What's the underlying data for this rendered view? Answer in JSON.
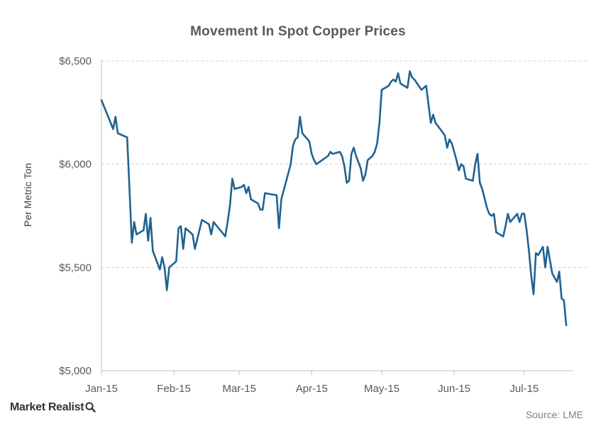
{
  "chart_data": {
    "type": "line",
    "title": "Movement In Spot Copper Prices",
    "ylabel": "Per Metric Ton",
    "xlabel": "",
    "ylim": [
      5000,
      6500
    ],
    "yticks": [
      5000,
      5500,
      6000,
      6500
    ],
    "ytick_labels": [
      "$5,000",
      "$5,500",
      "$6,000",
      "$6,500"
    ],
    "xticks": [
      "2015-01-01",
      "2015-02-01",
      "2015-03-01",
      "2015-04-01",
      "2015-05-01",
      "2015-06-01",
      "2015-07-01"
    ],
    "xtick_labels": [
      "Jan-15",
      "Feb-15",
      "Mar-15",
      "Apr-15",
      "May-15",
      "Jun-15",
      "Jul-15"
    ],
    "xlim": [
      "2015-01-01",
      "2015-07-22"
    ],
    "grid": "horizontal dashed",
    "line_color": "#1f6391",
    "series": [
      {
        "name": "",
        "points": [
          [
            "2015-01-01",
            6310
          ],
          [
            "2015-01-06",
            6170
          ],
          [
            "2015-01-07",
            6230
          ],
          [
            "2015-01-08",
            6150
          ],
          [
            "2015-01-12",
            6130
          ],
          [
            "2015-01-13",
            5880
          ],
          [
            "2015-01-14",
            5620
          ],
          [
            "2015-01-15",
            5720
          ],
          [
            "2015-01-16",
            5660
          ],
          [
            "2015-01-19",
            5680
          ],
          [
            "2015-01-20",
            5760
          ],
          [
            "2015-01-21",
            5630
          ],
          [
            "2015-01-22",
            5740
          ],
          [
            "2015-01-23",
            5580
          ],
          [
            "2015-01-26",
            5490
          ],
          [
            "2015-01-27",
            5550
          ],
          [
            "2015-01-28",
            5500
          ],
          [
            "2015-01-29",
            5390
          ],
          [
            "2015-01-30",
            5500
          ],
          [
            "2015-02-02",
            5530
          ],
          [
            "2015-02-03",
            5690
          ],
          [
            "2015-02-04",
            5700
          ],
          [
            "2015-02-05",
            5590
          ],
          [
            "2015-02-06",
            5690
          ],
          [
            "2015-02-09",
            5660
          ],
          [
            "2015-02-10",
            5590
          ],
          [
            "2015-02-13",
            5730
          ],
          [
            "2015-02-16",
            5710
          ],
          [
            "2015-02-17",
            5660
          ],
          [
            "2015-02-18",
            5720
          ],
          [
            "2015-02-23",
            5650
          ],
          [
            "2015-02-24",
            5720
          ],
          [
            "2015-02-25",
            5800
          ],
          [
            "2015-02-26",
            5930
          ],
          [
            "2015-02-27",
            5880
          ],
          [
            "2015-03-02",
            5890
          ],
          [
            "2015-03-03",
            5900
          ],
          [
            "2015-03-04",
            5860
          ],
          [
            "2015-03-05",
            5890
          ],
          [
            "2015-03-06",
            5830
          ],
          [
            "2015-03-09",
            5810
          ],
          [
            "2015-03-10",
            5780
          ],
          [
            "2015-03-11",
            5780
          ],
          [
            "2015-03-12",
            5860
          ],
          [
            "2015-03-17",
            5850
          ],
          [
            "2015-03-18",
            5690
          ],
          [
            "2015-03-19",
            5830
          ],
          [
            "2015-03-23",
            6000
          ],
          [
            "2015-03-24",
            6090
          ],
          [
            "2015-03-25",
            6120
          ],
          [
            "2015-03-26",
            6130
          ],
          [
            "2015-03-27",
            6230
          ],
          [
            "2015-03-28",
            6150
          ],
          [
            "2015-03-31",
            6110
          ],
          [
            "2015-04-01",
            6050
          ],
          [
            "2015-04-02",
            6020
          ],
          [
            "2015-04-03",
            6000
          ],
          [
            "2015-04-08",
            6040
          ],
          [
            "2015-04-09",
            6060
          ],
          [
            "2015-04-10",
            6050
          ],
          [
            "2015-04-13",
            6060
          ],
          [
            "2015-04-14",
            6040
          ],
          [
            "2015-04-15",
            5990
          ],
          [
            "2015-04-16",
            5910
          ],
          [
            "2015-04-17",
            5920
          ],
          [
            "2015-04-18",
            6050
          ],
          [
            "2015-04-19",
            6080
          ],
          [
            "2015-04-20",
            6040
          ],
          [
            "2015-04-22",
            5980
          ],
          [
            "2015-04-23",
            5920
          ],
          [
            "2015-04-24",
            5950
          ],
          [
            "2015-04-25",
            6020
          ],
          [
            "2015-04-27",
            6040
          ],
          [
            "2015-04-28",
            6060
          ],
          [
            "2015-04-29",
            6100
          ],
          [
            "2015-04-30",
            6200
          ],
          [
            "2015-05-01",
            6360
          ],
          [
            "2015-05-04",
            6380
          ],
          [
            "2015-05-05",
            6400
          ],
          [
            "2015-05-06",
            6410
          ],
          [
            "2015-05-07",
            6400
          ],
          [
            "2015-05-08",
            6440
          ],
          [
            "2015-05-09",
            6390
          ],
          [
            "2015-05-12",
            6370
          ],
          [
            "2015-05-13",
            6450
          ],
          [
            "2015-05-14",
            6420
          ],
          [
            "2015-05-15",
            6410
          ],
          [
            "2015-05-18",
            6360
          ],
          [
            "2015-05-20",
            6380
          ],
          [
            "2015-05-21",
            6290
          ],
          [
            "2015-05-22",
            6200
          ],
          [
            "2015-05-23",
            6240
          ],
          [
            "2015-05-24",
            6200
          ],
          [
            "2015-05-26",
            6170
          ],
          [
            "2015-05-28",
            6140
          ],
          [
            "2015-05-29",
            6080
          ],
          [
            "2015-05-30",
            6120
          ],
          [
            "2015-05-31",
            6100
          ],
          [
            "2015-06-02",
            6020
          ],
          [
            "2015-06-03",
            5970
          ],
          [
            "2015-06-04",
            6000
          ],
          [
            "2015-06-05",
            5990
          ],
          [
            "2015-06-06",
            5930
          ],
          [
            "2015-06-09",
            5920
          ],
          [
            "2015-06-10",
            6000
          ],
          [
            "2015-06-11",
            6050
          ],
          [
            "2015-06-12",
            5910
          ],
          [
            "2015-06-13",
            5880
          ],
          [
            "2015-06-15",
            5790
          ],
          [
            "2015-06-16",
            5760
          ],
          [
            "2015-06-17",
            5750
          ],
          [
            "2015-06-18",
            5760
          ],
          [
            "2015-06-19",
            5670
          ],
          [
            "2015-06-22",
            5650
          ],
          [
            "2015-06-23",
            5700
          ],
          [
            "2015-06-24",
            5760
          ],
          [
            "2015-06-25",
            5720
          ],
          [
            "2015-06-28",
            5760
          ],
          [
            "2015-06-29",
            5720
          ],
          [
            "2015-06-30",
            5760
          ],
          [
            "2015-07-01",
            5760
          ],
          [
            "2015-07-02",
            5680
          ],
          [
            "2015-07-03",
            5580
          ],
          [
            "2015-07-04",
            5460
          ],
          [
            "2015-07-05",
            5370
          ],
          [
            "2015-07-06",
            5570
          ],
          [
            "2015-07-07",
            5560
          ],
          [
            "2015-07-08",
            5580
          ],
          [
            "2015-07-09",
            5600
          ],
          [
            "2015-07-10",
            5500
          ],
          [
            "2015-07-11",
            5600
          ],
          [
            "2015-07-13",
            5470
          ],
          [
            "2015-07-14",
            5450
          ],
          [
            "2015-07-15",
            5430
          ],
          [
            "2015-07-16",
            5480
          ],
          [
            "2015-07-17",
            5350
          ],
          [
            "2015-07-18",
            5340
          ],
          [
            "2015-07-19",
            5220
          ]
        ]
      }
    ]
  },
  "branding": {
    "logo_text": "Market Realist",
    "logo_icon": "magnifier-q-icon",
    "source": "Source: LME"
  }
}
